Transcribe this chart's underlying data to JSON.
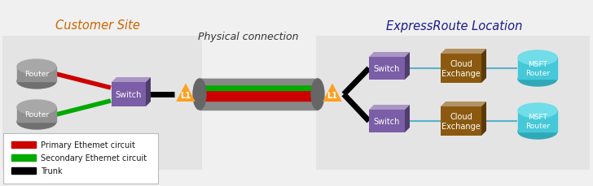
{
  "bg_color": "#f0f0f0",
  "customer_site_bg": "#e4e4e4",
  "expressroute_bg": "#e4e4e4",
  "title_customer": "Customer Site",
  "title_expressroute": "ExpressRoute Location",
  "title_physical": "Physical connection",
  "switch_color": "#7B5EA7",
  "router_color_top": "#909090",
  "router_color_dark": "#707070",
  "router_color_light": "#a8a8a8",
  "cloud_exchange_color": "#8B5A10",
  "msft_router_color": "#45C8D8",
  "msft_router_dark": "#30a8b8",
  "msft_router_light": "#70dde8",
  "l1_color": "#FFA020",
  "trunk_color": "#000000",
  "primary_color": "#CC0000",
  "secondary_color": "#00AA00",
  "cable_gray": "#888888",
  "cable_dark": "#666666",
  "line_color": "#5ab0cc",
  "legend_primary": "Primary Ethemet circuit",
  "legend_secondary": "Secondary Ethernet circuit",
  "legend_trunk": "Trunk",
  "title_color_customer": "#CC6600",
  "title_color_express": "#1a1a8a"
}
